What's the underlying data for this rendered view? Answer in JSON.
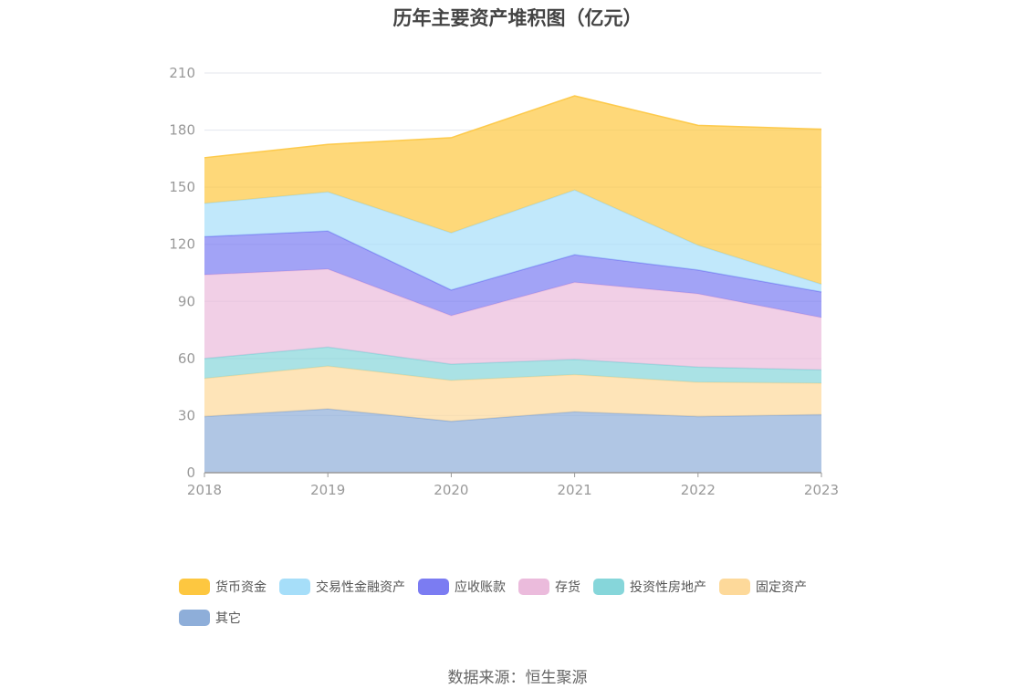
{
  "source": "数据来源：恒生聚源",
  "colors": {
    "axis": "#999999",
    "grid": "#e3e6ee",
    "tick_text": "#999999"
  },
  "chart_data": {
    "type": "area",
    "stacked": true,
    "title": "历年主要资产堆积图（亿元）",
    "categories": [
      "2018",
      "2019",
      "2020",
      "2021",
      "2022",
      "2023"
    ],
    "ylim": [
      0,
      210
    ],
    "yticks": [
      "0",
      "30",
      "60",
      "90",
      "120",
      "150",
      "180",
      "210"
    ],
    "grid": true,
    "legend_position": "bottom",
    "series": [
      {
        "name": "其它",
        "values": [
          29.5,
          33.5,
          27,
          32,
          29.5,
          30.5
        ],
        "color": "#8eaed9"
      },
      {
        "name": "固定资产",
        "values": [
          20,
          22.5,
          21.5,
          19.5,
          18,
          16.5
        ],
        "color": "#fdd99a"
      },
      {
        "name": "投资性房地产",
        "values": [
          10.5,
          10,
          8.5,
          8,
          8,
          7
        ],
        "color": "#86d6da"
      },
      {
        "name": "存货",
        "values": [
          44,
          41,
          25.5,
          40.5,
          38.5,
          27.5
        ],
        "color": "#ebbbdc"
      },
      {
        "name": "应收账款",
        "values": [
          20,
          20,
          13.5,
          14.5,
          12.5,
          13.5
        ],
        "color": "#7b7cf2"
      },
      {
        "name": "交易性金融资产",
        "values": [
          17.5,
          20.5,
          30,
          34,
          13,
          4
        ],
        "color": "#a6def9"
      },
      {
        "name": "货币资金",
        "values": [
          24,
          25,
          50,
          49.5,
          63,
          81.5
        ],
        "color": "#fdc740"
      }
    ],
    "legend_order": [
      "货币资金",
      "交易性金融资产",
      "应收账款",
      "存货",
      "投资性房地产",
      "固定资产",
      "其它"
    ]
  }
}
